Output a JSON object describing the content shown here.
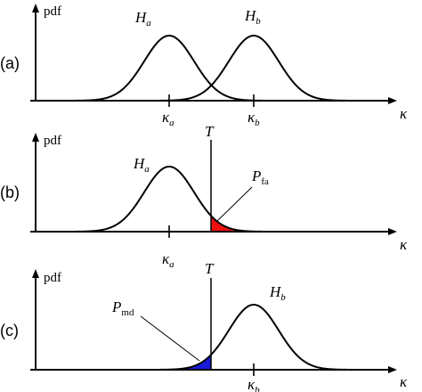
{
  "colors": {
    "false_alarm_fill": "#ee1111",
    "missed_detection_fill": "#1a1ad6"
  },
  "axis_labels": {
    "y": "pdf",
    "x": "κ"
  },
  "hypotheses": {
    "a": {
      "base": "H",
      "sub": "a"
    },
    "b": {
      "base": "H",
      "sub": "b"
    }
  },
  "ticks": {
    "a": {
      "base": "κ",
      "sub": "a"
    },
    "b": {
      "base": "κ",
      "sub": "b"
    }
  },
  "threshold": "T",
  "areas": {
    "false_alarm": {
      "base": "P",
      "sub": "fa"
    },
    "missed_detection": {
      "base": "P",
      "sub": "md"
    }
  },
  "panels": [
    {
      "label": "(a)"
    },
    {
      "label": "(b)"
    },
    {
      "label": "(c)"
    }
  ]
}
